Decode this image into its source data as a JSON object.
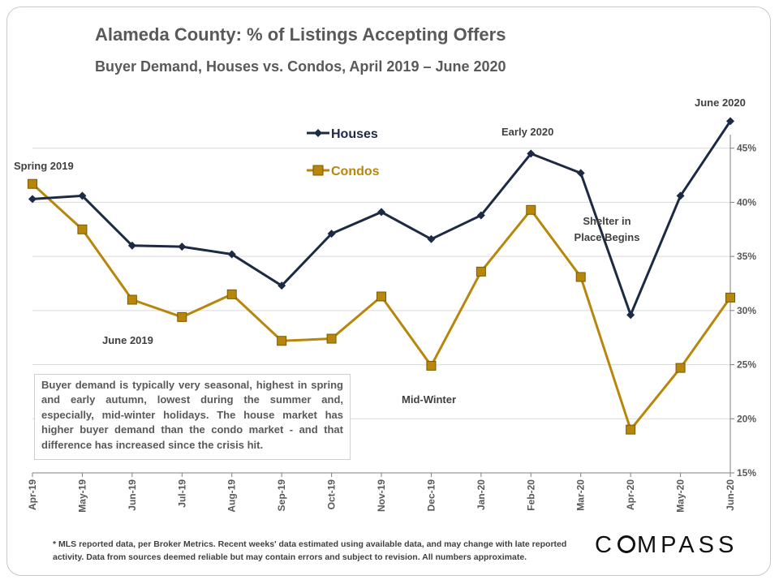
{
  "header": {
    "title": "Alameda County: % of Listings Accepting Offers",
    "subtitle": "Buyer Demand, Houses vs. Condos, April 2019 – June 2020"
  },
  "chart_data": {
    "type": "line",
    "categories": [
      "Apr-19",
      "May-19",
      "Jun-19",
      "Jul-19",
      "Aug-19",
      "Sep-19",
      "Oct-19",
      "Nov-19",
      "Dec-19",
      "Jan-20",
      "Feb-20",
      "Mar-20",
      "Apr-20",
      "May-20",
      "Jun-20"
    ],
    "series": [
      {
        "name": "Houses",
        "color": "#1c2a44",
        "marker": "diamond",
        "values": [
          40.3,
          40.6,
          36.0,
          35.9,
          35.2,
          32.3,
          37.1,
          39.1,
          36.6,
          38.8,
          44.5,
          42.7,
          29.6,
          40.6,
          47.5
        ]
      },
      {
        "name": "Condos",
        "color": "#b8860b",
        "marker": "square",
        "values": [
          41.7,
          37.5,
          31.0,
          29.4,
          31.5,
          27.2,
          27.4,
          31.3,
          24.9,
          33.6,
          39.3,
          33.1,
          19.0,
          24.7,
          31.2
        ]
      }
    ],
    "ylim": [
      15,
      50
    ],
    "yticks": [
      "15%",
      "20%",
      "25%",
      "30%",
      "35%",
      "40%",
      "45%"
    ],
    "grid": true,
    "legend_position": "top-center",
    "annotations": [
      "Spring 2019",
      "June 2019",
      "Mid-Winter",
      "Early 2020",
      "Shelter in Place Begins",
      "June 2020"
    ]
  },
  "annotations": {
    "spring": "Spring 2019",
    "june2019": "June 2019",
    "midwinter": "Mid-Winter",
    "early2020": "Early 2020",
    "shelter_line1": "Shelter in",
    "shelter_line2": "Place Begins",
    "june2020": "June 2020"
  },
  "note": "Buyer demand is typically very seasonal, highest in spring and early autumn, lowest during the summer and, especially, mid-winter holidays. The house market has higher buyer demand than the condo market - and that difference has increased since the crisis hit.",
  "footnote": "* MLS reported data, per Broker Metrics. Recent weeks' data estimated using available data, and may change with late reported activity. Data from sources deemed reliable but may contain errors and subject to revision. All numbers approximate.",
  "logo": {
    "part1": "C",
    "part2": "MPASS"
  }
}
